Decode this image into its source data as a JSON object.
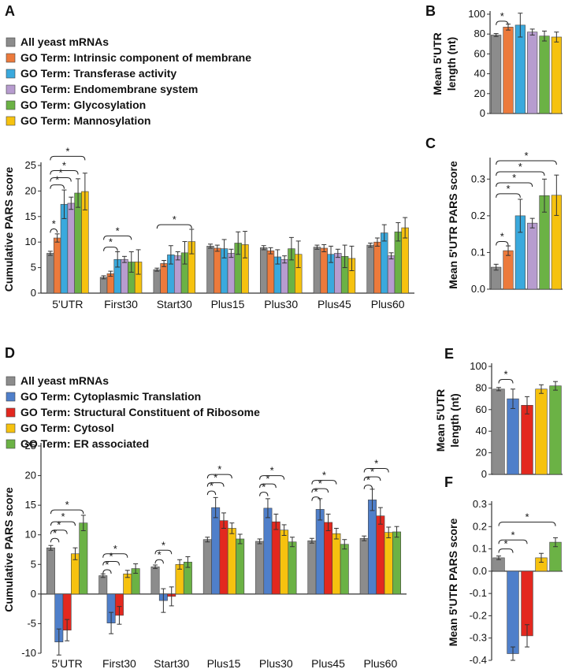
{
  "colors": {
    "gray": "#8c8c8c",
    "orange": "#ec7a3c",
    "cyan": "#3aa9dd",
    "purple": "#b79ccf",
    "green": "#6bb245",
    "yellow": "#f6c20f",
    "blue": "#4f7fca",
    "red": "#e3281f"
  },
  "chart_data": [
    {
      "id": "A",
      "panel_label": "A",
      "type": "bar",
      "ylabel": "Cumulative PARS score",
      "ylim": [
        0,
        25
      ],
      "yticks": [
        0,
        5,
        10,
        15,
        20,
        25
      ],
      "categories": [
        "5'UTR",
        "First30",
        "Start30",
        "Plus15",
        "Plus30",
        "Plus45",
        "Plus60"
      ],
      "series": [
        {
          "name": "All yeast mRNAs",
          "color": "gray",
          "values": [
            7.8,
            3.1,
            4.6,
            9.2,
            8.9,
            9.0,
            9.4
          ],
          "err": [
            0.4,
            0.3,
            0.3,
            0.4,
            0.4,
            0.4,
            0.4
          ]
        },
        {
          "name": "GO Term: Intrinsic component of membrane",
          "color": "orange",
          "values": [
            10.8,
            3.8,
            5.8,
            8.8,
            8.3,
            8.8,
            10.0
          ],
          "err": [
            0.8,
            0.5,
            0.6,
            0.6,
            0.6,
            0.7,
            0.8
          ]
        },
        {
          "name": "GO Term: Transferase activity",
          "color": "cyan",
          "values": [
            17.4,
            6.6,
            7.5,
            8.7,
            7.1,
            7.6,
            11.8
          ],
          "err": [
            2.8,
            1.5,
            1.8,
            1.8,
            1.4,
            1.6,
            1.6
          ]
        },
        {
          "name": "GO Term: Endomembrane system",
          "color": "purple",
          "values": [
            17.6,
            6.6,
            7.3,
            7.8,
            6.6,
            7.8,
            7.3
          ],
          "err": [
            1.2,
            0.6,
            0.8,
            0.8,
            0.7,
            0.8,
            0.6
          ]
        },
        {
          "name": "GO Term: Glycosylation",
          "color": "green",
          "values": [
            19.6,
            6.1,
            7.9,
            9.8,
            8.7,
            7.2,
            12.0
          ],
          "err": [
            2.8,
            2.0,
            2.2,
            2.2,
            2.2,
            2.2,
            1.8
          ]
        },
        {
          "name": "GO Term: Mannosylation",
          "color": "yellow",
          "values": [
            19.9,
            6.1,
            10.1,
            9.5,
            7.6,
            6.8,
            12.8
          ],
          "err": [
            3.6,
            2.4,
            2.4,
            2.6,
            2.6,
            2.4,
            2.0
          ]
        }
      ],
      "annotations": [
        "*",
        "*",
        "*",
        "*",
        "*",
        "*",
        "*",
        "*"
      ]
    },
    {
      "id": "B",
      "panel_label": "B",
      "type": "bar",
      "ylabel_lines": [
        "Mean 5'UTR",
        "length (nt)"
      ],
      "ylim": [
        0,
        100
      ],
      "yticks": [
        0,
        20,
        40,
        60,
        80,
        100
      ],
      "categories": [
        "All yeast mRNAs",
        "Intrinsic component of membrane",
        "Transferase activity",
        "Endomembrane system",
        "Glycosylation",
        "Mannosylation"
      ],
      "colors": [
        "gray",
        "orange",
        "cyan",
        "purple",
        "green",
        "yellow"
      ],
      "values": [
        79,
        87,
        89,
        82,
        78,
        77
      ],
      "err": [
        1.5,
        3,
        12,
        3,
        5,
        5
      ],
      "annotations": [
        "*"
      ]
    },
    {
      "id": "C",
      "panel_label": "C",
      "type": "bar",
      "ylabel": "Mean 5'UTR PARS score",
      "ylim": [
        0,
        0.35
      ],
      "yticks": [
        0.0,
        0.1,
        0.2,
        0.3
      ],
      "ytick_labels": [
        "0.0",
        "0.1",
        "0.2",
        "0.3"
      ],
      "categories": [
        "All yeast mRNAs",
        "Intrinsic component of membrane",
        "Transferase activity",
        "Endomembrane system",
        "Glycosylation",
        "Mannosylation"
      ],
      "colors": [
        "gray",
        "orange",
        "cyan",
        "purple",
        "green",
        "yellow"
      ],
      "values": [
        0.06,
        0.105,
        0.2,
        0.18,
        0.255,
        0.256
      ],
      "err": [
        0.008,
        0.013,
        0.045,
        0.013,
        0.045,
        0.055
      ],
      "annotations": [
        "*",
        "*",
        "*",
        "*",
        "*"
      ]
    },
    {
      "id": "D",
      "panel_label": "D",
      "type": "bar",
      "ylabel": "Cumulative PARS score",
      "ylim": [
        -10,
        25
      ],
      "yticks": [
        -10,
        -5,
        0,
        5,
        10,
        15,
        20,
        25
      ],
      "categories": [
        "5'UTR",
        "First30",
        "Start30",
        "Plus15",
        "Plus30",
        "Plus45",
        "Plus60"
      ],
      "series": [
        {
          "name": "All yeast mRNAs",
          "color": "gray",
          "values": [
            7.8,
            3.1,
            4.6,
            9.2,
            8.9,
            9.0,
            9.4
          ],
          "err": [
            0.4,
            0.3,
            0.3,
            0.4,
            0.4,
            0.4,
            0.4
          ]
        },
        {
          "name": "GO Term: Cytoplasmic Translation",
          "color": "blue",
          "values": [
            -8.1,
            -4.9,
            -1.1,
            14.6,
            14.5,
            14.3,
            15.9
          ],
          "err": [
            2.2,
            1.8,
            2.0,
            1.7,
            1.6,
            1.8,
            1.8
          ]
        },
        {
          "name": "GO Term: Structural Constituent of Ribosome",
          "color": "red",
          "values": [
            -6.1,
            -3.6,
            -0.4,
            12.4,
            12.2,
            12.1,
            13.2
          ],
          "err": [
            1.8,
            1.5,
            1.6,
            1.3,
            1.3,
            1.4,
            1.4
          ]
        },
        {
          "name": "GO Term: Cytosol",
          "color": "yellow",
          "values": [
            6.8,
            3.4,
            5.0,
            11.1,
            10.8,
            10.2,
            10.4
          ],
          "err": [
            1.0,
            0.6,
            0.8,
            0.9,
            0.9,
            0.9,
            0.9
          ]
        },
        {
          "name": "GO Term: ER associated",
          "color": "green",
          "values": [
            12.0,
            4.3,
            5.4,
            9.3,
            8.8,
            8.4,
            10.5
          ],
          "err": [
            1.3,
            0.8,
            0.9,
            0.8,
            0.8,
            0.8,
            0.9
          ]
        }
      ],
      "annotations": [
        "*",
        "*",
        "*",
        "*",
        "*",
        "*",
        "*",
        "*",
        "*",
        "*",
        "*",
        "*",
        "*",
        "*",
        "*",
        "*",
        "*",
        "*",
        "*",
        "*",
        "*"
      ]
    },
    {
      "id": "E",
      "panel_label": "E",
      "type": "bar",
      "ylabel_lines": [
        "Mean 5'UTR",
        "length (nt)"
      ],
      "ylim": [
        0,
        100
      ],
      "yticks": [
        0,
        20,
        40,
        60,
        80,
        100
      ],
      "categories": [
        "All yeast mRNAs",
        "Cytoplasmic Translation",
        "Structural Constituent of Ribosome",
        "Cytosol",
        "ER associated"
      ],
      "colors": [
        "gray",
        "blue",
        "red",
        "yellow",
        "green"
      ],
      "values": [
        79,
        70,
        64,
        79,
        82
      ],
      "err": [
        1.5,
        9,
        8,
        4,
        4
      ],
      "annotations": [
        "*"
      ]
    },
    {
      "id": "F",
      "panel_label": "F",
      "type": "bar",
      "ylabel": "Mean 5'UTR PARS score",
      "ylim": [
        -0.4,
        0.3
      ],
      "yticks": [
        -0.4,
        -0.3,
        -0.2,
        -0.1,
        0.0,
        0.1,
        0.2,
        0.3
      ],
      "ytick_labels": [
        "-0.4",
        "-0.3",
        "-0.2",
        "-0.1",
        "0.0",
        "0.1",
        "0.2",
        "0.3"
      ],
      "categories": [
        "All yeast mRNAs",
        "Cytoplasmic Translation",
        "Structural Constituent of Ribosome",
        "Cytosol",
        "ER associated"
      ],
      "colors": [
        "gray",
        "blue",
        "red",
        "yellow",
        "green"
      ],
      "values": [
        0.06,
        -0.37,
        -0.29,
        0.06,
        0.13
      ],
      "err": [
        0.008,
        0.03,
        0.05,
        0.02,
        0.02
      ],
      "annotations": [
        "*",
        "*",
        "*"
      ]
    }
  ]
}
